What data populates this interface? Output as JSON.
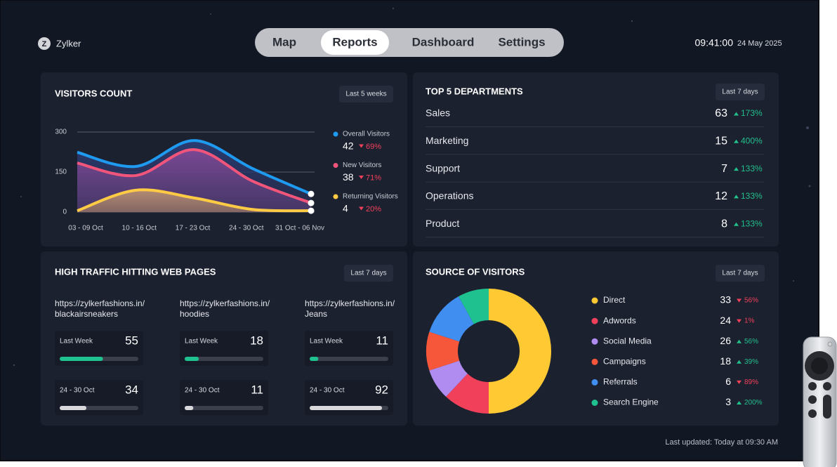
{
  "brand": {
    "logo": "Z",
    "name": "Zylker"
  },
  "nav": {
    "items": [
      "Map",
      "Reports",
      "Dashboard",
      "Settings"
    ],
    "active": 1
  },
  "clock": {
    "time": "09:41:00",
    "date": "24 May 2025"
  },
  "visitors": {
    "title": "VISITORS COUNT",
    "filter": "Last 5 weeks",
    "chart": {
      "type": "line",
      "categories": [
        "03 - 09 Oct",
        "10 - 16 Oct",
        "17 - 23 Oct",
        "24 - 30 Oct",
        "31 Oct - 06 Nov"
      ],
      "ylim": [
        0,
        300
      ],
      "yticks": [
        0,
        150,
        300
      ],
      "grid": true,
      "series": [
        {
          "name": "Overall Visitors",
          "color": "#1e9bf0",
          "values": [
            224,
            171,
            268,
            163,
            68
          ],
          "current": 42,
          "change": "69%",
          "trend": "down"
        },
        {
          "name": "New Visitors",
          "color": "#f2557a",
          "values": [
            184,
            137,
            234,
            116,
            34
          ],
          "current": 38,
          "change": "71%",
          "trend": "down"
        },
        {
          "name": "Returning Visitors",
          "color": "#ffcb45",
          "values": [
            5,
            82,
            53,
            10,
            5
          ],
          "current": 4,
          "change": "20%",
          "trend": "down"
        }
      ]
    }
  },
  "departments": {
    "title": "TOP 5 DEPARTMENTS",
    "filter": "Last 7 days",
    "rows": [
      {
        "name": "Sales",
        "value": 63,
        "change": "173%",
        "trend": "up"
      },
      {
        "name": "Marketing",
        "value": 15,
        "change": "400%",
        "trend": "up"
      },
      {
        "name": "Support",
        "value": 7,
        "change": "133%",
        "trend": "up"
      },
      {
        "name": "Operations",
        "value": 12,
        "change": "133%",
        "trend": "up"
      },
      {
        "name": "Product",
        "value": 8,
        "change": "133%",
        "trend": "up"
      }
    ]
  },
  "web_pages": {
    "title": "HIGH TRAFFIC HITTING WEB PAGES",
    "filter": "Last 7 days",
    "bar_range": [
      0,
      100
    ],
    "pages": [
      {
        "url": [
          "https://zylkerfashions.in/",
          "blackairsneakers"
        ],
        "periods": [
          {
            "label": "Last Week",
            "value": 55,
            "color": "#1fc18f"
          },
          {
            "label": "24 - 30 Oct",
            "value": 34,
            "color": "#d9d9dc"
          }
        ]
      },
      {
        "url": [
          "https://zylkerfashions.in/",
          "hoodies"
        ],
        "periods": [
          {
            "label": "Last Week",
            "value": 18,
            "color": "#1fc18f"
          },
          {
            "label": "24 - 30 Oct",
            "value": 11,
            "color": "#d9d9dc"
          }
        ]
      },
      {
        "url": [
          "https://zylkerfashions.in/",
          "Jeans"
        ],
        "periods": [
          {
            "label": "Last Week",
            "value": 11,
            "color": "#1fc18f"
          },
          {
            "label": "24 - 30 Oct",
            "value": 92,
            "color": "#d9d9dc"
          }
        ]
      }
    ]
  },
  "sources": {
    "title": "SOURCE OF VISITORS",
    "filter": "Last 7 days",
    "chart": {
      "type": "donut",
      "items": [
        {
          "name": "Direct",
          "color": "#ffc933",
          "share": 50,
          "value": 33,
          "change": "56%",
          "trend": "down"
        },
        {
          "name": "Adwords",
          "color": "#f0405a",
          "share": 12,
          "value": 24,
          "change": "1%",
          "trend": "down"
        },
        {
          "name": "Social Media",
          "color": "#b18cf0",
          "share": 8,
          "value": 26,
          "change": "56%",
          "trend": "up"
        },
        {
          "name": "Campaigns",
          "color": "#f6573b",
          "share": 10,
          "value": 18,
          "change": "39%",
          "trend": "up"
        },
        {
          "name": "Referrals",
          "color": "#3f8ef0",
          "share": 12,
          "value": 6,
          "change": "89%",
          "trend": "down"
        },
        {
          "name": "Search Engine",
          "color": "#1fc18f",
          "share": 8,
          "value": 3,
          "change": "200%",
          "trend": "up"
        }
      ]
    }
  },
  "footer": "Last updated: Today at 09:30 AM"
}
